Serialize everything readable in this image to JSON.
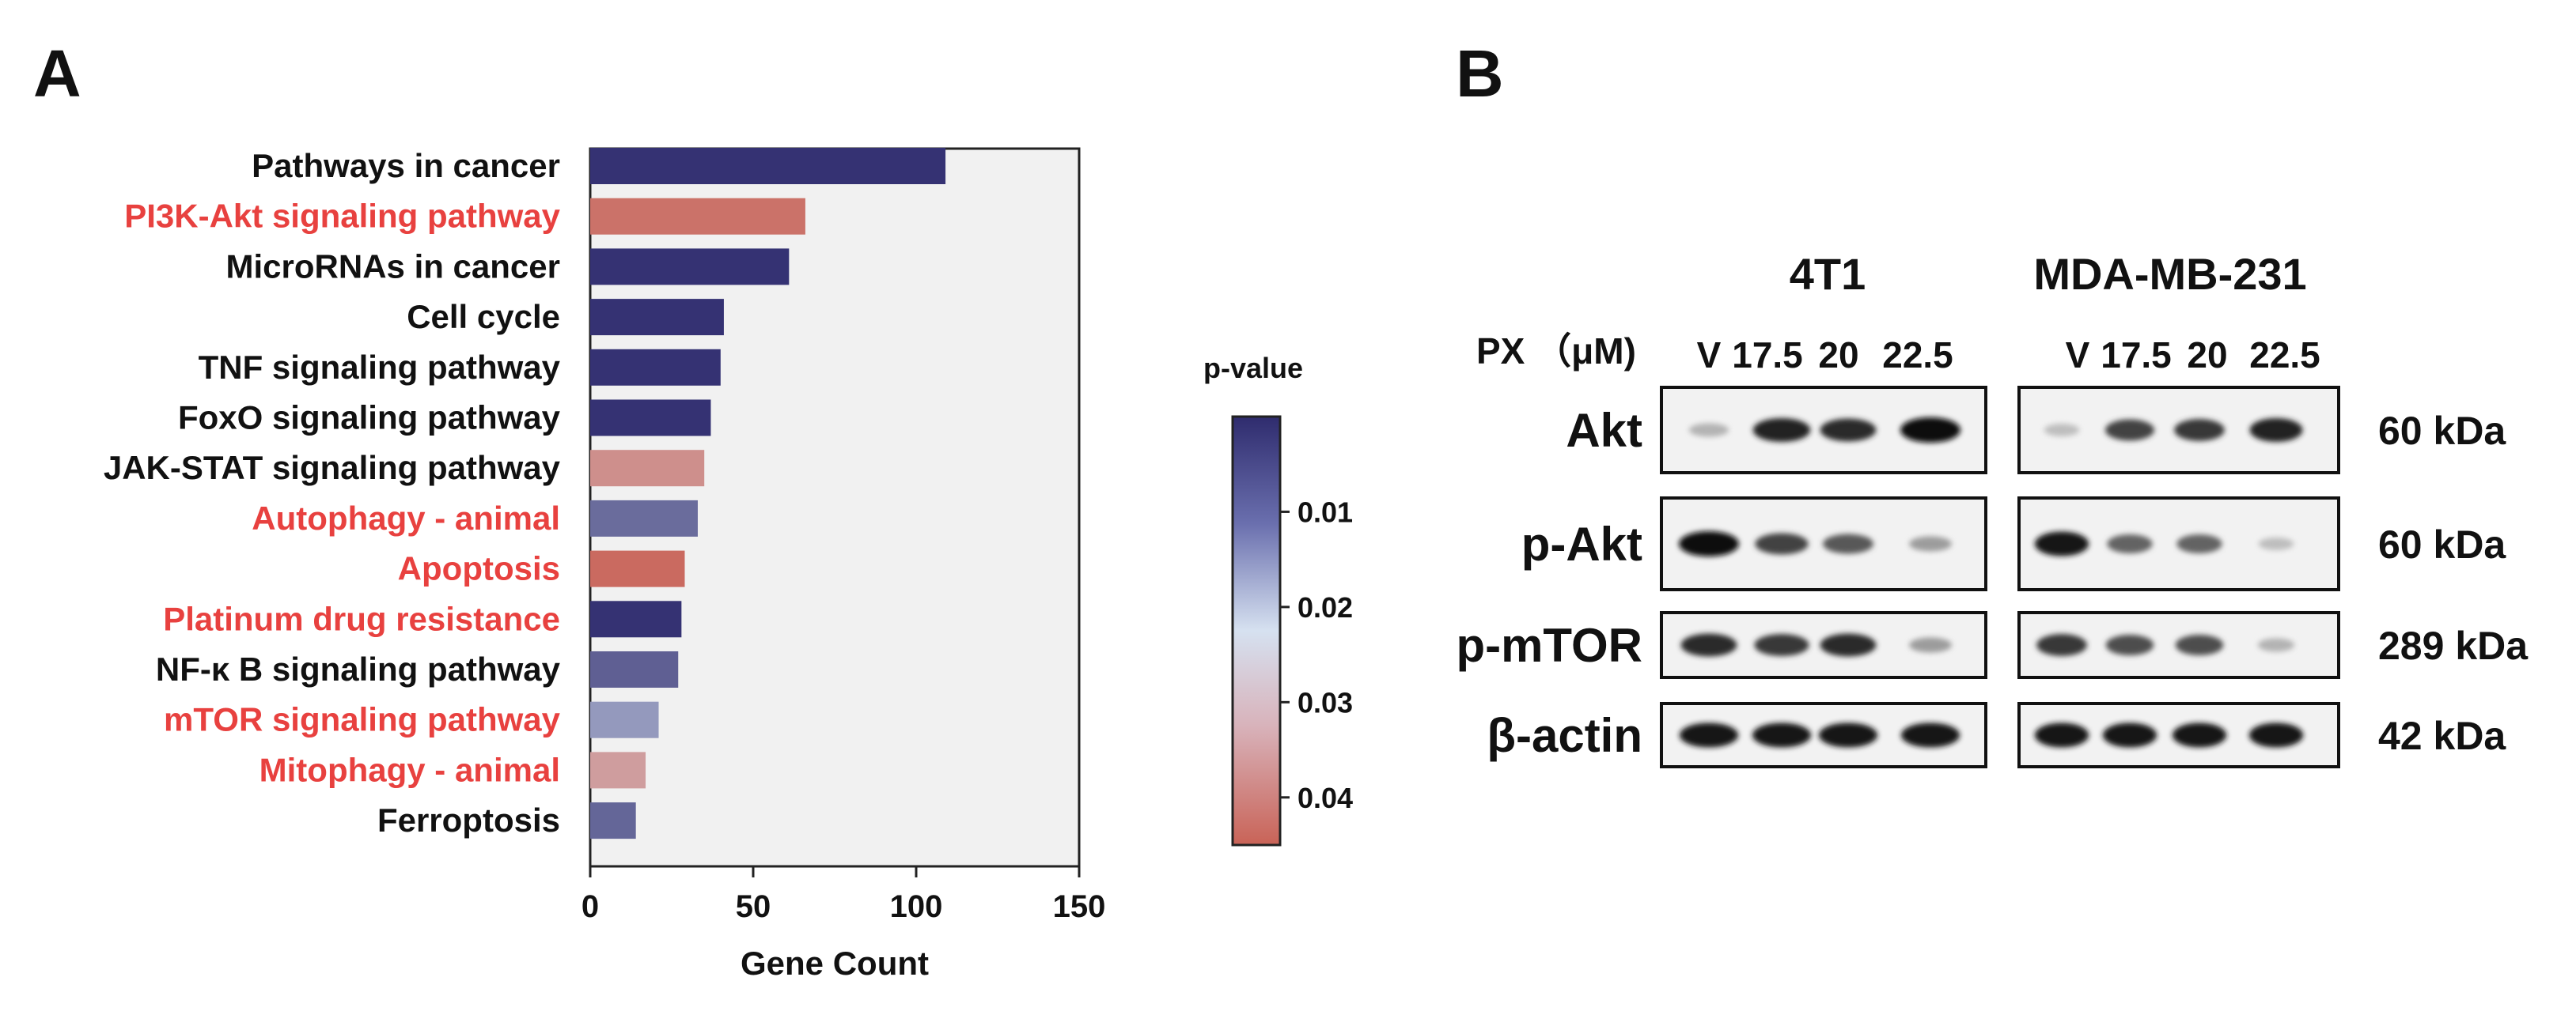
{
  "chart_data": [
    {
      "panel": "A",
      "type": "bar",
      "orientation": "horizontal",
      "categories": [
        "Pathways in cancer",
        "PI3K-Akt signaling pathway",
        "MicroRNAs in cancer",
        "Cell cycle",
        "TNF signaling pathway",
        "FoxO signaling pathway",
        "JAK-STAT signaling pathway",
        "Autophagy - animal",
        "Apoptosis",
        "Platinum drug resistance",
        "NF-κ B signaling pathway",
        "mTOR signaling pathway",
        "Mitophagy - animal",
        "Ferroptosis"
      ],
      "values": [
        109,
        66,
        61,
        41,
        40,
        37,
        35,
        33,
        29,
        28,
        27,
        21,
        17,
        14
      ],
      "p_values": [
        0.001,
        0.041,
        0.001,
        0.001,
        0.001,
        0.001,
        0.033,
        0.01,
        0.043,
        0.001,
        0.008,
        0.017,
        0.029,
        0.009
      ],
      "highlighted": [
        false,
        true,
        false,
        false,
        false,
        false,
        false,
        true,
        true,
        true,
        false,
        true,
        true,
        false
      ],
      "highlight_color": "#e8413f",
      "label_color": "#111111",
      "xlabel": "Gene Count",
      "ylabel": "",
      "xlim": [
        0,
        150
      ],
      "xticks": [
        "0",
        "50",
        "100",
        "150"
      ],
      "plot_background": "#f1f1f1",
      "colorbar": {
        "title": "p-value",
        "ticks": [
          "0.01",
          "0.02",
          "0.03",
          "0.04"
        ],
        "tick_values": [
          0.01,
          0.02,
          0.03,
          0.04
        ],
        "range": [
          0.0,
          0.045
        ],
        "color_low": "#2f2c6e",
        "color_mid": "#d6e1f0",
        "color_high": "#c96357"
      }
    },
    {
      "panel": "B",
      "type": "western-blot",
      "groups": [
        "4T1",
        "MDA-MB-231"
      ],
      "treatment_label": "PX （μM)",
      "lanes": [
        "V",
        "17.5",
        "20",
        "22.5"
      ],
      "rows": [
        {
          "protein": "Akt",
          "kda": "60 kDa",
          "intensity": [
            [
              0.25,
              0.9,
              0.85,
              1.0
            ],
            [
              0.2,
              0.75,
              0.8,
              0.9
            ]
          ]
        },
        {
          "protein": "p-Akt",
          "kda": "60 kDa",
          "intensity": [
            [
              1.0,
              0.75,
              0.65,
              0.35
            ],
            [
              0.95,
              0.6,
              0.6,
              0.2
            ]
          ]
        },
        {
          "protein": "p-mTOR",
          "kda": "289 kDa",
          "intensity": [
            [
              0.85,
              0.8,
              0.85,
              0.35
            ],
            [
              0.8,
              0.7,
              0.7,
              0.25
            ]
          ]
        },
        {
          "protein": "β-actin",
          "kda": "42 kDa",
          "intensity": [
            [
              0.95,
              0.95,
              0.95,
              0.95
            ],
            [
              0.95,
              0.95,
              0.95,
              0.95
            ]
          ]
        }
      ]
    }
  ],
  "panels": {
    "a_letter": "A",
    "b_letter": "B"
  }
}
